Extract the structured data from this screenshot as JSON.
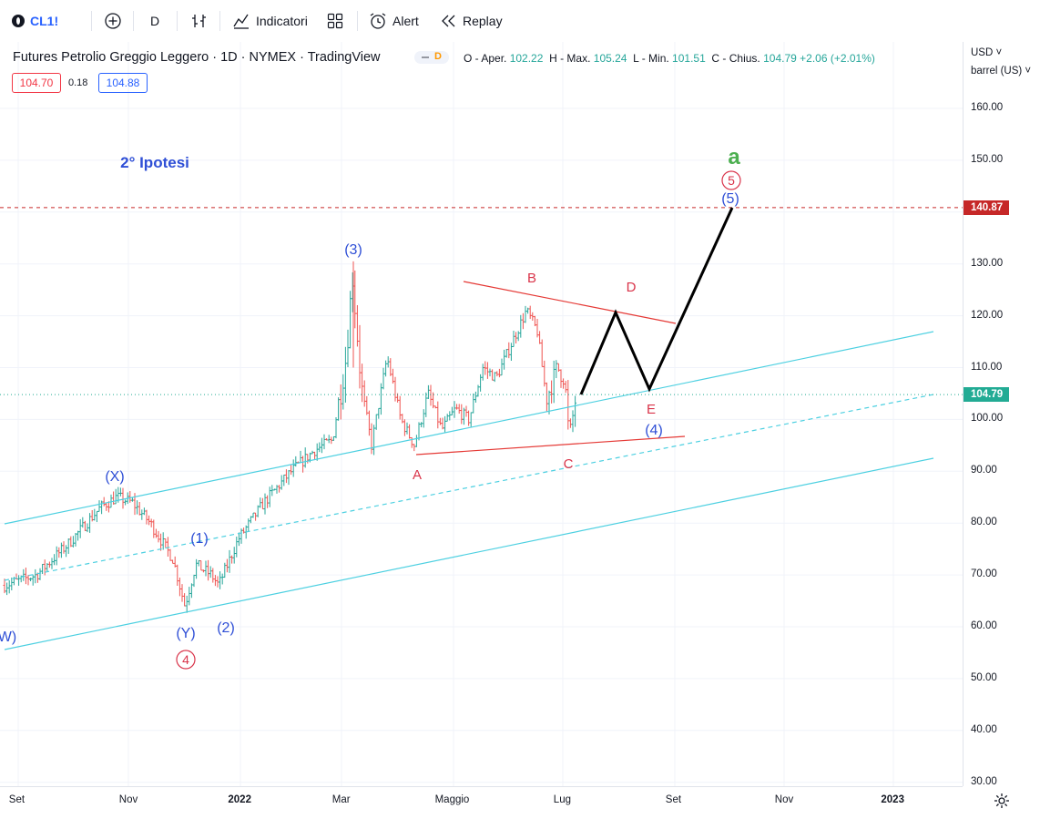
{
  "toolbar": {
    "symbol": "CL1!",
    "interval": "D",
    "indicators_label": "Indicatori",
    "alert_label": "Alert",
    "replay_label": "Replay"
  },
  "legend": {
    "title": "Futures Petrolio Greggio Leggero · 1D · NYMEX · TradingView",
    "pill_letter": "D",
    "o_label": "O - Aper.",
    "o_value": "102.22",
    "h_label": "H - Max.",
    "h_value": "105.24",
    "l_label": "L - Min.",
    "l_value": "101.51",
    "c_label": "C - Chius.",
    "c_value": "104.79",
    "change": "+2.06 (+2.01%)",
    "bid": "104.70",
    "spread": "0.18",
    "ask": "104.88"
  },
  "scale": {
    "currency": "USD",
    "unit": "barrel (US)",
    "last_price_tag": "104.79",
    "level_tag": "140.87",
    "price_ticks": [
      "160.00",
      "150.00",
      "140.00",
      "130.00",
      "120.00",
      "110.00",
      "100.00",
      "90.00",
      "80.00",
      "70.00",
      "60.00",
      "50.00",
      "40.00",
      "30.00"
    ],
    "time_ticks": [
      "Set",
      "Nov",
      "2022",
      "Mar",
      "Maggio",
      "Lug",
      "Set",
      "Nov",
      "2023"
    ]
  },
  "annotations": {
    "hypothesis": "2° Ipotesi",
    "wave_a": "a",
    "wave_5_circle": "5",
    "wave_5": "(5)",
    "wave_3": "(3)",
    "wave_4": "(4)",
    "wave_x": "(X)",
    "wave_y": "(Y)",
    "wave_1": "(1)",
    "wave_2": "(2)",
    "wave_4_circle": "4",
    "wave_w": "W)",
    "tri_a": "A",
    "tri_b": "B",
    "tri_c": "C",
    "tri_d": "D",
    "tri_e": "E"
  },
  "colors": {
    "up": "#26a69a",
    "down": "#ef5350",
    "channel": "#4dd0e1",
    "wave_blue": "#2f4fd6",
    "wave_red": "#d9344a",
    "wave_green": "#4caf50",
    "level_red": "#c62828"
  }
}
